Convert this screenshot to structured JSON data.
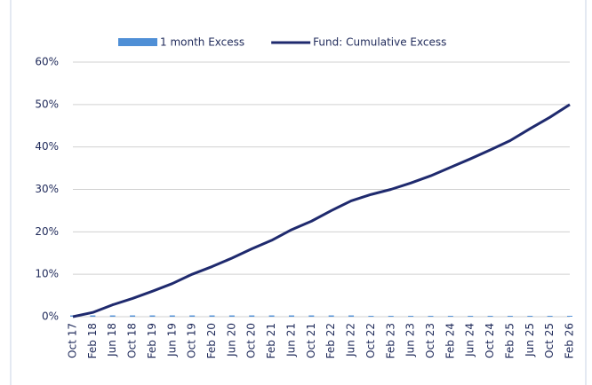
{
  "chart_data": {
    "type": "line",
    "categories": [
      "Oct 17",
      "Feb 18",
      "Jun 18",
      "Oct 18",
      "Feb 19",
      "Jun 19",
      "Oct 19",
      "Feb 20",
      "Jun 20",
      "Oct 20",
      "Feb 21",
      "Jun 21",
      "Oct 21",
      "Feb 22",
      "Jun 22",
      "Oct 22",
      "Feb 23",
      "Jun 23",
      "Oct 23",
      "Feb 24",
      "Jun 24",
      "Oct 24",
      "Feb 25",
      "Jun 25",
      "Oct 25",
      "Feb 26"
    ],
    "series": [
      {
        "name": "1 month Excess",
        "kind": "bar",
        "color": "#4f8fd6",
        "values": [
          0.3,
          0.3,
          0.3,
          0.3,
          0.3,
          0.3,
          0.3,
          0.3,
          0.3,
          0.3,
          0.3,
          0.3,
          0.3,
          0.3,
          0.3,
          0.2,
          0.2,
          0.2,
          0.2,
          0.2,
          0.2,
          0.2,
          0.2,
          0.2,
          0.2,
          0.2
        ]
      },
      {
        "name": "Fund: Cumulative Excess",
        "kind": "line",
        "color": "#1f2a6e",
        "values": [
          0,
          1,
          2.8,
          4.3,
          6,
          7.8,
          10,
          11.8,
          13.8,
          16,
          18,
          20.5,
          22.5,
          25,
          27.3,
          28.8,
          30,
          31.5,
          33.2,
          35.2,
          37.2,
          39.3,
          41.5,
          44.3,
          47,
          50
        ]
      }
    ],
    "ylim": [
      0,
      60
    ],
    "yticks": [
      {
        "value": 0,
        "label": "0%"
      },
      {
        "value": 10,
        "label": "10%"
      },
      {
        "value": 20,
        "label": "20%"
      },
      {
        "value": 30,
        "label": "30%"
      },
      {
        "value": 40,
        "label": "40%"
      },
      {
        "value": 50,
        "label": "50%"
      },
      {
        "value": 60,
        "label": "60%"
      }
    ],
    "grid": true,
    "legend": "top"
  }
}
